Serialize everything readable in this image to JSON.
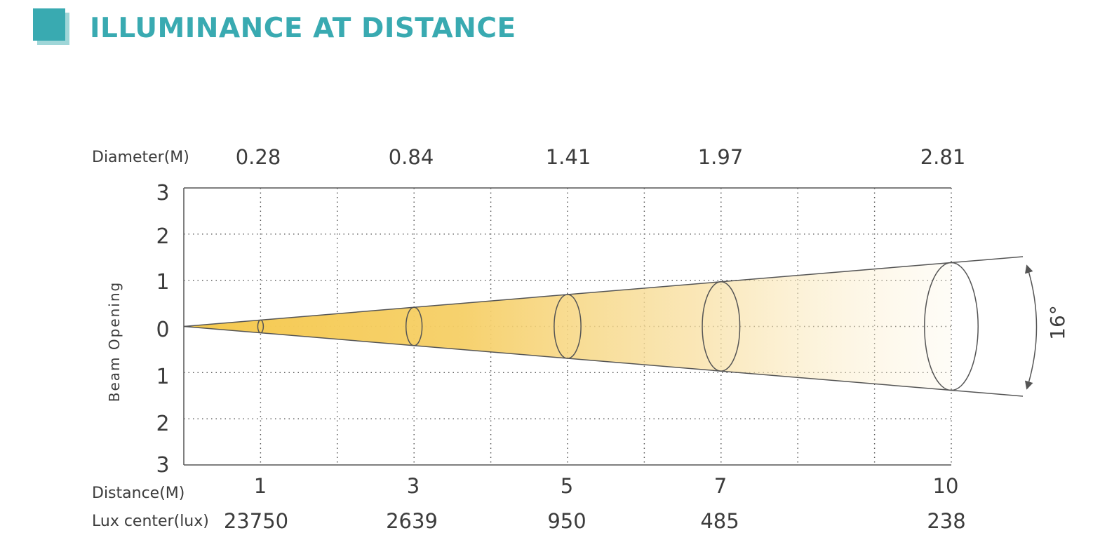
{
  "page": {
    "title": "ILLUMINANCE AT DISTANCE"
  },
  "chart_data": {
    "type": "diagram",
    "beam_angle_label": "16°",
    "ylabel": "Beam Opening",
    "yticks": [
      "3",
      "2",
      "1",
      "0",
      "1",
      "2",
      "3"
    ],
    "ylim": [
      -3,
      3
    ],
    "xlim": [
      0,
      10
    ],
    "grid": true,
    "rows": {
      "diameter_label": "Diameter(M)",
      "distance_label": "Distance(M)",
      "lux_label": "Lux center(lux)"
    },
    "distance": [
      1,
      3,
      5,
      7,
      10
    ],
    "diameter": [
      0.28,
      0.84,
      1.41,
      1.97,
      2.81
    ],
    "lux_center": [
      23750,
      2639,
      950,
      485,
      238
    ],
    "distance_text": [
      "1",
      "3",
      "5",
      "7",
      "10"
    ],
    "diameter_text": [
      "0.28",
      "0.84",
      "1.41",
      "1.97",
      "2.81"
    ],
    "lux_text": [
      "23750",
      "2639",
      "950",
      "485",
      "238"
    ],
    "colors": {
      "accent": "#39aab1",
      "beam": "#f5cc5a",
      "line": "#555555"
    }
  }
}
